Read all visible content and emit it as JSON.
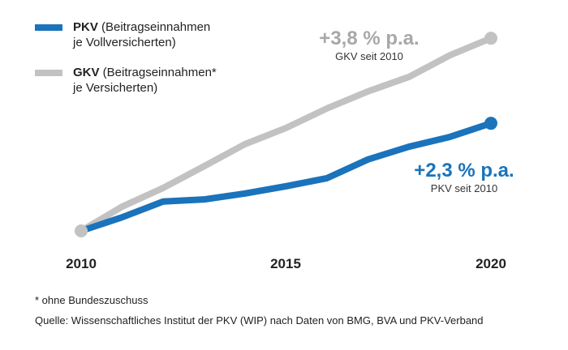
{
  "chart_data": {
    "type": "line",
    "title": "",
    "xlabel": "",
    "ylabel": "",
    "x": [
      2010,
      2011,
      2012,
      2013,
      2014,
      2015,
      2016,
      2017,
      2018,
      2019,
      2020
    ],
    "x_tick_labels": [
      "2010",
      "2015",
      "2020"
    ],
    "ylim": [
      98,
      148
    ],
    "grid": false,
    "legend_position": "top-left",
    "series": [
      {
        "name": "PKV",
        "label_bold": "PKV",
        "label_rest": " (Beitragseinnahmen",
        "label_line2": "je Vollversicherten)",
        "color": "#1a73bb",
        "values": [
          100,
          103.2,
          106.9,
          107.4,
          108.8,
          110.5,
          112.4,
          116.8,
          119.8,
          122.1,
          125.3
        ]
      },
      {
        "name": "GKV",
        "label_bold": "GKV",
        "label_rest": " (Beitragseinnahmen*",
        "label_line2": "je Versicherten)",
        "color": "#c2c2c2",
        "values": [
          100,
          105.7,
          110.1,
          115.2,
          120.4,
          124.2,
          128.8,
          132.8,
          136.2,
          141.3,
          145.3
        ]
      }
    ],
    "annotations": [
      {
        "series": "GKV",
        "big": "+3,8 % p.a.",
        "small": "GKV seit 2010",
        "color": "#a8a8a8"
      },
      {
        "series": "PKV",
        "big": "+2,3 % p.a.",
        "small": "PKV seit 2010",
        "color": "#1a73bb"
      }
    ]
  },
  "footnotes": {
    "note": "* ohne Bundeszuschuss",
    "source": "Quelle: Wissenschaftliches Institut der PKV (WIP) nach Daten von BMG, BVA und PKV-Verband"
  }
}
